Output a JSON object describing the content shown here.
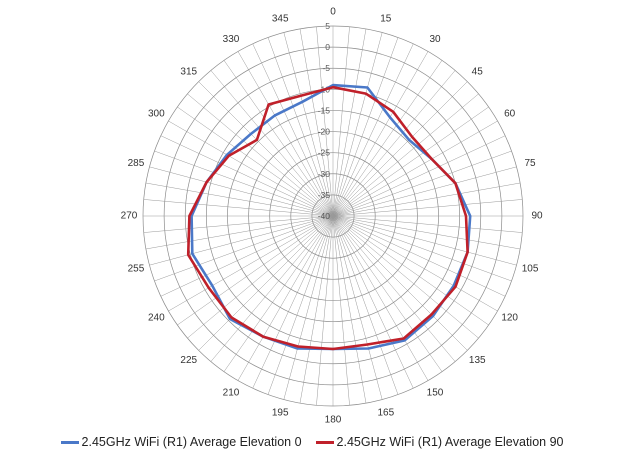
{
  "chart_data": {
    "type": "polar-line",
    "angle_ticks": [
      0,
      15,
      30,
      45,
      60,
      75,
      90,
      105,
      120,
      135,
      150,
      165,
      180,
      195,
      210,
      225,
      240,
      255,
      270,
      285,
      300,
      315,
      330,
      345
    ],
    "radial_ticks": [
      5,
      0,
      -5,
      -10,
      -15,
      -20,
      -25,
      -30,
      -35,
      -40
    ],
    "rlim": [
      -40,
      5
    ],
    "legend_position": "bottom",
    "series": [
      {
        "name": "2.45GHz WiFi (R1) Average Elevation 0",
        "color": "#4a78c8",
        "angles": [
          0,
          15,
          30,
          45,
          60,
          75,
          90,
          105,
          120,
          135,
          150,
          165,
          180,
          195,
          210,
          225,
          240,
          255,
          270,
          285,
          300,
          315,
          330,
          345
        ],
        "values": [
          -9,
          -8.5,
          -13,
          -14.5,
          -13,
          -10,
          -7.5,
          -7,
          -7,
          -6.5,
          -6,
          -7.5,
          -8.5,
          -7.5,
          -7,
          -5.5,
          -7,
          -5.5,
          -6.5,
          -9,
          -11,
          -12.5,
          -12.5,
          -12
        ]
      },
      {
        "name": "2.45GHz WiFi (R1) Average Elevation 90",
        "color": "#c0202a",
        "angles": [
          0,
          15,
          30,
          45,
          60,
          75,
          90,
          105,
          120,
          135,
          150,
          165,
          180,
          195,
          210,
          225,
          240,
          255,
          270,
          285,
          300,
          315,
          330,
          345
        ],
        "values": [
          -9.5,
          -10,
          -11.5,
          -13.5,
          -13,
          -10,
          -8.5,
          -7,
          -6.5,
          -7,
          -6.5,
          -8.5,
          -8.5,
          -8,
          -7,
          -6,
          -6,
          -4.5,
          -6,
          -9,
          -11.5,
          -14.5,
          -9.5,
          -10.5
        ]
      }
    ]
  }
}
